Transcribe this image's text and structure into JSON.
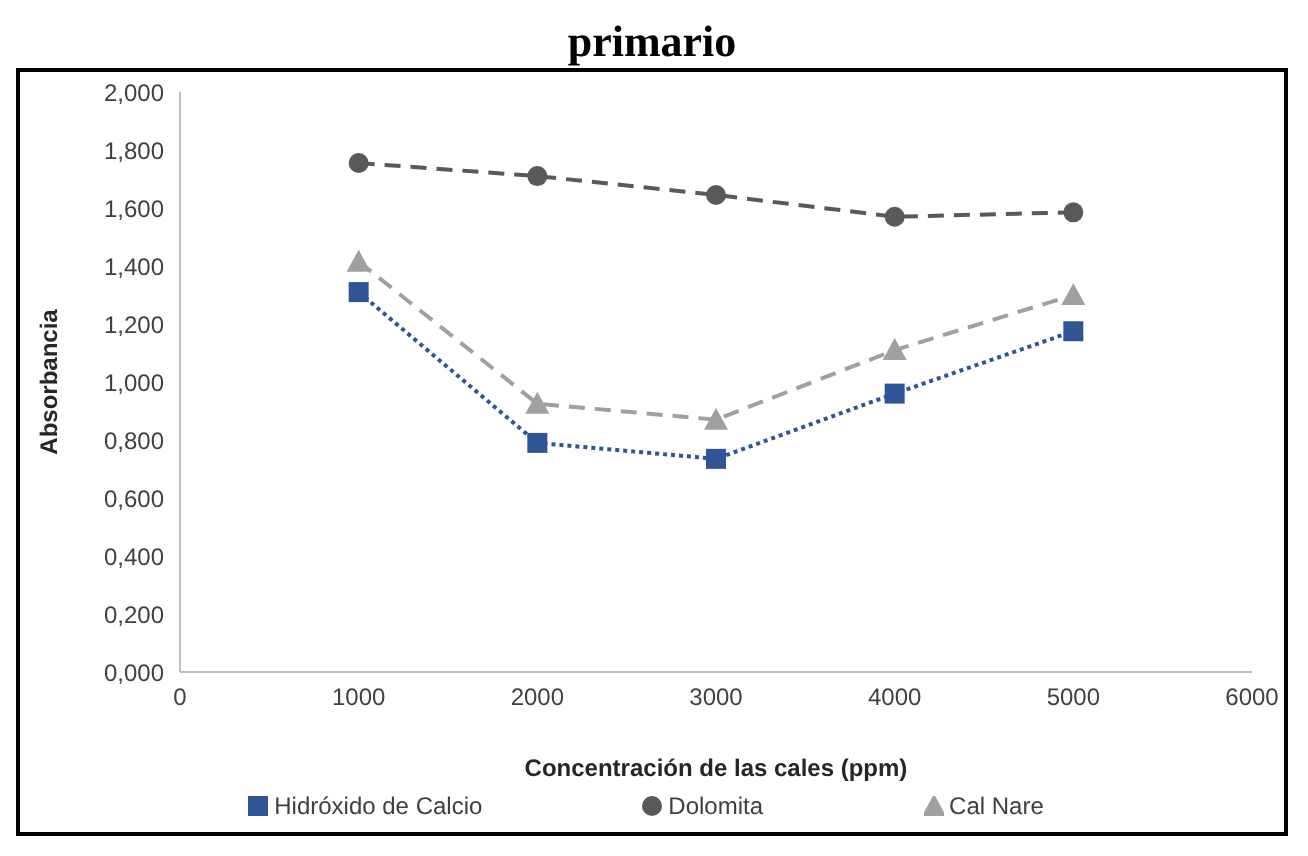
{
  "chart_data": {
    "type": "line",
    "title": "primario",
    "xlabel": "Concentración de las cales (ppm)",
    "ylabel": "Absorbancia",
    "x": [
      1000,
      2000,
      3000,
      4000,
      5000
    ],
    "series": [
      {
        "name": "Hidróxido de Calcio",
        "color": "#2f5597",
        "values": [
          1.31,
          0.79,
          0.735,
          0.96,
          1.175
        ],
        "marker": "square",
        "line_style": "dotted"
      },
      {
        "name": "Dolomita",
        "color": "#595959",
        "values": [
          1.755,
          1.71,
          1.645,
          1.57,
          1.585
        ],
        "marker": "circle",
        "line_style": "dashed"
      },
      {
        "name": "Cal Nare",
        "color": "#a0a0a0",
        "values": [
          1.415,
          0.925,
          0.87,
          1.11,
          1.3
        ],
        "marker": "triangle",
        "line_style": "dashed"
      }
    ],
    "xlim": [
      0,
      6000
    ],
    "xticks": [
      0,
      1000,
      2000,
      3000,
      4000,
      5000,
      6000
    ],
    "ylim": [
      0,
      2
    ],
    "yticks": [
      {
        "value": 0,
        "label": "0,000"
      },
      {
        "value": 0.2,
        "label": "0,200"
      },
      {
        "value": 0.4,
        "label": "0,400"
      },
      {
        "value": 0.6,
        "label": "0,600"
      },
      {
        "value": 0.8,
        "label": "0,800"
      },
      {
        "value": 1,
        "label": "1,000"
      },
      {
        "value": 1.2,
        "label": "1,200"
      },
      {
        "value": 1.4,
        "label": "1,400"
      },
      {
        "value": 1.6,
        "label": "1,600"
      },
      {
        "value": 1.8,
        "label": "1,800"
      },
      {
        "value": 2,
        "label": "2,000"
      }
    ],
    "grid": false,
    "legend": "bottom"
  }
}
